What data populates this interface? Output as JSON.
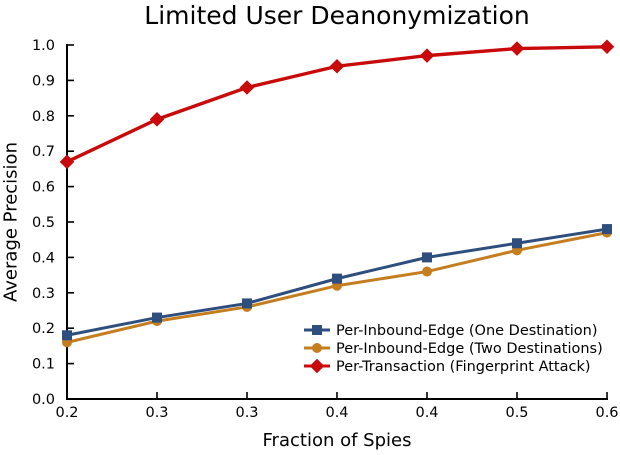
{
  "chart_data": {
    "type": "line",
    "title": "Limited User Deanonymization",
    "xlabel": "Fraction of Spies",
    "ylabel": "Average Precision",
    "xlim": [
      0.2,
      0.6
    ],
    "ylim": [
      0.0,
      1.0
    ],
    "x_tick_labels": [
      "0.2",
      "0.3",
      "0.3",
      "0.4",
      "0.4",
      "0.5",
      "0.6"
    ],
    "y_tick_labels": [
      "0.0",
      "0.1",
      "0.2",
      "0.3",
      "0.4",
      "0.5",
      "0.6",
      "0.7",
      "0.8",
      "0.9",
      "1.0"
    ],
    "grid": false,
    "legend": {
      "location": "inside-lower-right",
      "frame": false
    },
    "series": [
      {
        "name": "Per-Inbound-Edge (One Destination)",
        "marker": "square",
        "color": "#2E4E7E",
        "values": [
          0.18,
          0.23,
          0.27,
          0.34,
          0.4,
          0.44,
          0.48
        ]
      },
      {
        "name": "Per-Inbound-Edge (Two Destinations)",
        "marker": "circle",
        "color": "#C47E1F",
        "values": [
          0.16,
          0.22,
          0.26,
          0.32,
          0.36,
          0.42,
          0.47
        ]
      },
      {
        "name": "Per-Transaction (Fingerprint Attack)",
        "marker": "diamond",
        "color": "#C80A0A",
        "values": [
          0.67,
          0.79,
          0.88,
          0.94,
          0.97,
          0.99,
          0.995
        ]
      }
    ]
  }
}
